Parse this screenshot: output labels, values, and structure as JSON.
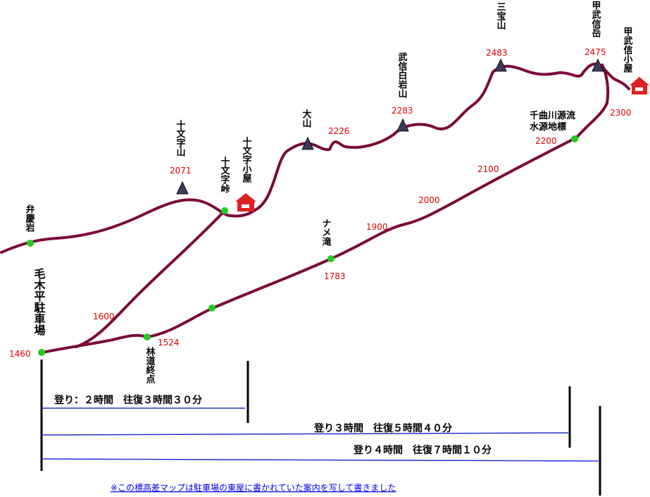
{
  "colors": {
    "trail": "#7a0a3a",
    "point": "#22cc22",
    "peak": "#3b3b5c",
    "hut": "#dd2222",
    "elevation_text": "#e00000",
    "time_line": "#2233cc",
    "note_link": "#0000ee"
  },
  "labels": {
    "bengeiwa": "弁慶岩",
    "parking": "毛木平駐車場",
    "jumonjiyama": "十文字山",
    "jumonji_toge": "十文字峠",
    "jumonji_goya": "十文字小屋",
    "oyama": "大山",
    "bushin_shiraiwa": "武信白岩山",
    "sanpozan": "三宝山",
    "kobushi_dake": "甲武信岳",
    "kobushi_goya": "甲武信小屋",
    "source": "千曲川源流",
    "source_marker": "水源地標",
    "namedaki": "ナメ滝",
    "rindo_end": "林道終点"
  },
  "elevations": {
    "parking": "1460",
    "jumonjiyama": "2071",
    "oyama_side": "2226",
    "bushin_shiraiwa": "2283",
    "sanpozan": "2483",
    "kobushi_dake": "2475",
    "kobushi_goya": "2300",
    "source": "2200",
    "e2100": "2100",
    "e2000": "2000",
    "e1900": "1900",
    "namedaki": "1783",
    "e1600": "1600",
    "rindo_end": "1524"
  },
  "times": {
    "t1": "登り：２時間　往復３時間３０分",
    "t2": "登り３時間　往復５時間４０分",
    "t3": "登り４時間　往復７時間１０分"
  },
  "note": "※この標高差マップは駐車場の東屋に書かれていた案内を写して書きました"
}
